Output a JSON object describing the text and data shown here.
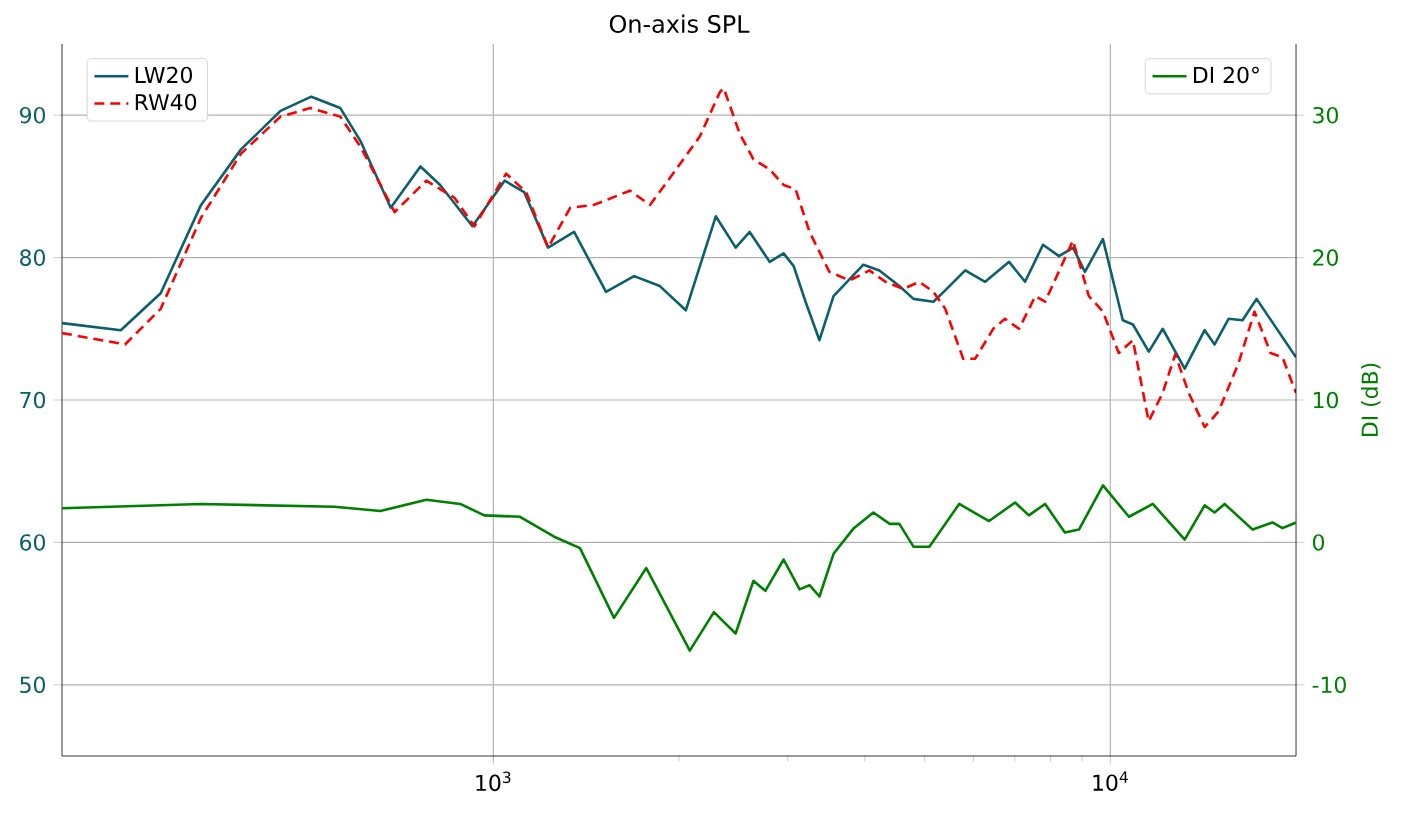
{
  "chart_data": {
    "type": "line",
    "title": "On-axis SPL",
    "y2label": "DI (dB)",
    "log": "x",
    "grid": true,
    "legend": "top left",
    "xlim": [
      200,
      20000
    ],
    "xticks": [
      {
        "value": 1000,
        "label": "10$^{3}$"
      },
      {
        "value": 10000,
        "label": "10$^{4}$"
      }
    ],
    "ylim": [
      45,
      95
    ],
    "yticks": [
      50,
      60,
      70,
      80,
      90
    ],
    "y2lim": [
      -15,
      35
    ],
    "y2ticks": [
      -10,
      0,
      10,
      20,
      30
    ],
    "series": [
      {
        "name": "LW20",
        "color": "#0b5f6e",
        "line_style": "solid",
        "x": [
          200,
          249,
          289,
          336,
          390,
          452,
          507,
          565,
          609,
          682,
          762,
          820,
          925,
          1043,
          1122,
          1227,
          1352,
          1523,
          1691,
          1862,
          2051,
          2294,
          2471,
          2603,
          2805,
          2955,
          3068,
          3207,
          3378,
          3560,
          3980,
          4224,
          4551,
          4797,
          5167,
          5401,
          5819,
          6269,
          6855,
          7275,
          7779,
          8257,
          8703,
          9096,
          9727,
          10478,
          10880,
          11544,
          12161,
          13199,
          14219,
          14760,
          15549,
          16380,
          17260,
          20000
        ],
        "values": [
          75.4,
          74.9,
          77.5,
          83.7,
          87.6,
          90.3,
          91.3,
          90.5,
          88.2,
          83.5,
          86.4,
          85.1,
          82.2,
          85.4,
          84.6,
          80.7,
          81.8,
          77.6,
          78.7,
          78.0,
          76.3,
          82.9,
          80.7,
          81.8,
          79.7,
          80.3,
          79.4,
          76.9,
          74.2,
          77.3,
          79.5,
          79.1,
          78.0,
          77.1,
          76.9,
          77.7,
          79.1,
          78.3,
          79.7,
          78.3,
          80.9,
          80.1,
          80.7,
          79.0,
          81.3,
          75.6,
          75.3,
          73.4,
          75.0,
          72.2,
          74.9,
          73.9,
          75.7,
          75.6,
          77.1,
          73.0
        ]
      },
      {
        "name": "RW40",
        "color": "#ff0000",
        "line_style": "dashed",
        "x": [
          200,
          253,
          289,
          336,
          390,
          452,
          505,
          565,
          609,
          692,
          779,
          865,
          932,
          1049,
          1130,
          1227,
          1332,
          1456,
          1665,
          1794,
          1904,
          2161,
          2328,
          2363,
          2508,
          2640,
          2805,
          2955,
          3090,
          3255,
          3505,
          3780,
          4070,
          4320,
          4620,
          4902,
          5167,
          5401,
          5775,
          6040,
          6460,
          6750,
          7114,
          7560,
          7840,
          8700,
          9230,
          9730,
          10320,
          10880,
          11540,
          12160,
          12740,
          13400,
          14220,
          14980,
          16140,
          17130,
          18190,
          19010,
          20000
        ],
        "values": [
          74.7,
          73.9,
          76.4,
          82.8,
          87.3,
          89.9,
          90.5,
          89.9,
          87.8,
          83.2,
          85.4,
          84.2,
          82.2,
          85.9,
          84.6,
          80.7,
          83.5,
          83.7,
          84.7,
          83.7,
          85.2,
          88.5,
          91.6,
          91.9,
          88.7,
          86.9,
          86.2,
          85.1,
          84.8,
          81.8,
          79.0,
          78.4,
          79.1,
          78.3,
          77.8,
          78.3,
          77.6,
          76.4,
          72.9,
          72.9,
          75.0,
          75.7,
          75.0,
          77.3,
          76.9,
          81.2,
          77.3,
          76.2,
          73.3,
          74.2,
          68.5,
          70.5,
          73.2,
          70.5,
          68.1,
          69.2,
          72.6,
          76.2,
          73.3,
          73.0,
          70.5
        ]
      },
      {
        "name": "DI 20°",
        "color": "#008000",
        "line_style": "solid",
        "axis": "y2",
        "x": [
          200,
          336,
          553,
          656,
          779,
          884,
          967,
          1105,
          1255,
          1382,
          1569,
          1770,
          2082,
          2278,
          2470,
          2640,
          2760,
          2955,
          3136,
          3255,
          3378,
          3560,
          3840,
          4130,
          4390,
          4551,
          4797,
          5090,
          5690,
          6360,
          7010,
          7380,
          7840,
          8440,
          8895,
          9730,
          10720,
          11720,
          13200,
          14220,
          14760,
          15320,
          17010,
          18320,
          19010,
          20000
        ],
        "values": [
          2.4,
          2.7,
          2.5,
          2.2,
          3.0,
          2.7,
          1.9,
          1.8,
          0.4,
          -0.4,
          -5.3,
          -1.8,
          -7.6,
          -4.9,
          -6.4,
          -2.7,
          -3.4,
          -1.2,
          -3.3,
          -3.0,
          -3.8,
          -0.8,
          1.0,
          2.1,
          1.3,
          1.3,
          -0.3,
          -0.3,
          2.7,
          1.5,
          2.8,
          1.9,
          2.7,
          0.7,
          0.9,
          4.0,
          1.8,
          2.7,
          0.2,
          2.6,
          2.1,
          2.7,
          0.9,
          1.4,
          1.0,
          1.4
        ]
      }
    ]
  }
}
